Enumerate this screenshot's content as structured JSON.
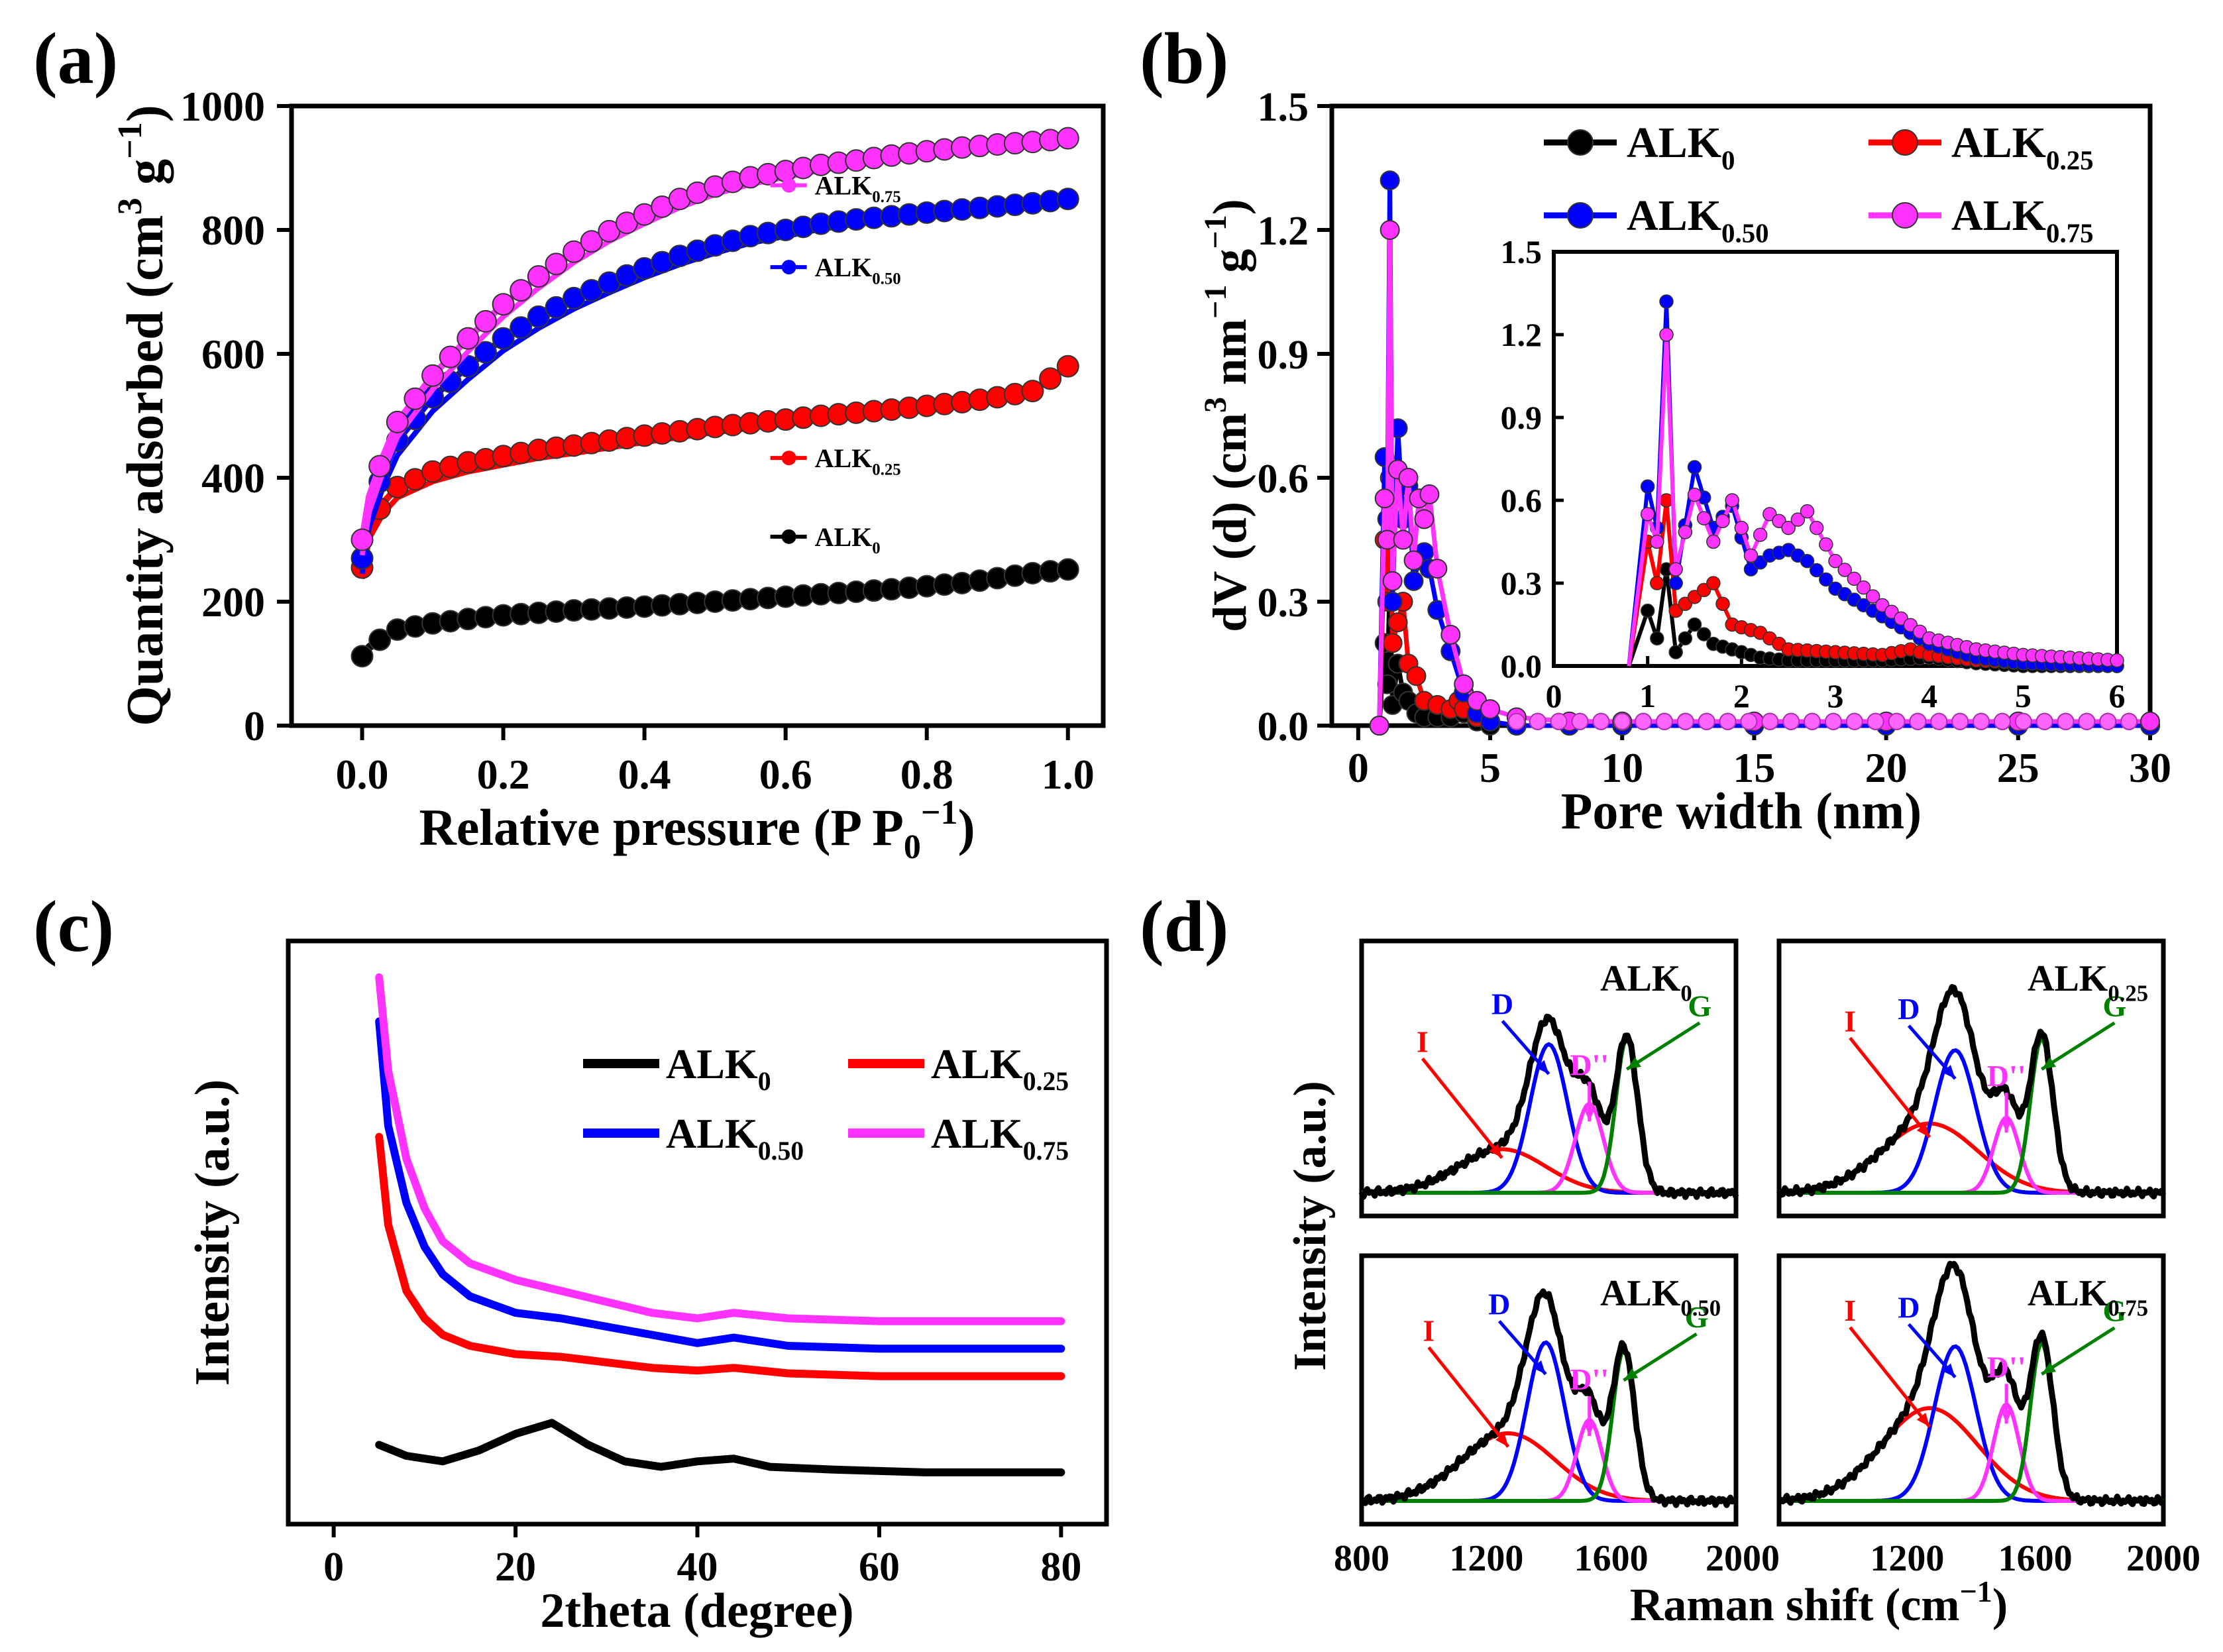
{
  "chart_data": [
    {
      "panel": "(a)",
      "type": "line",
      "xlabel": "Relative pressure (P P0⁻¹)",
      "xlabel_main": "Relative pressure (P P",
      "xlabel_sub": "0",
      "xlabel_sup": "−1",
      "xlabel_close": ")",
      "ylabel": "Quantity adsorbed (cm³ g⁻¹)",
      "ylabel_main": "Quantity adsorbed (cm",
      "ylabel_sup1": "3",
      "ylabel_mid": " g",
      "ylabel_sup2": "−1",
      "ylabel_close": ")",
      "xlim": [
        -0.1,
        1.05
      ],
      "ylim": [
        0,
        1000
      ],
      "xticks": [
        0.0,
        0.2,
        0.4,
        0.6,
        0.8,
        1.0
      ],
      "xtick_labels": [
        "0.0",
        "0.2",
        "0.4",
        "0.6",
        "0.8",
        "1.0"
      ],
      "yticks": [
        0,
        200,
        400,
        600,
        800,
        1000
      ],
      "ytick_labels": [
        "0",
        "200",
        "400",
        "600",
        "800",
        "1000"
      ],
      "legend_position": "inline-right",
      "series": [
        {
          "name": "ALK0",
          "label_main": "ALK",
          "label_sub": "0",
          "color": "#000000",
          "x": [
            0.0,
            0.01,
            0.03,
            0.05,
            0.1,
            0.15,
            0.2,
            0.25,
            0.3,
            0.35,
            0.4,
            0.45,
            0.5,
            0.55,
            0.6,
            0.65,
            0.7,
            0.75,
            0.8,
            0.85,
            0.9,
            0.95,
            1.0
          ],
          "y": [
            112,
            128,
            142,
            155,
            165,
            172,
            178,
            182,
            186,
            189,
            192,
            196,
            200,
            204,
            208,
            212,
            216,
            220,
            225,
            230,
            238,
            246,
            252
          ],
          "label_y": 305
        },
        {
          "name": "ALK0.25",
          "label_main": "ALK",
          "label_sub": "0.25",
          "color": "#ff0000",
          "x": [
            0.0,
            0.01,
            0.03,
            0.05,
            0.1,
            0.15,
            0.2,
            0.25,
            0.3,
            0.35,
            0.4,
            0.45,
            0.5,
            0.55,
            0.6,
            0.65,
            0.7,
            0.75,
            0.8,
            0.85,
            0.9,
            0.95,
            1.0
          ],
          "y": [
            255,
            320,
            360,
            385,
            410,
            425,
            435,
            445,
            452,
            460,
            468,
            475,
            482,
            488,
            494,
            500,
            505,
            510,
            516,
            522,
            530,
            540,
            580
          ],
          "label_y": 432
        },
        {
          "name": "ALK0.50",
          "label_main": "ALK",
          "label_sub": "0.50",
          "color": "#0000ff",
          "x": [
            0.0,
            0.01,
            0.03,
            0.05,
            0.1,
            0.15,
            0.2,
            0.25,
            0.3,
            0.35,
            0.4,
            0.45,
            0.5,
            0.55,
            0.6,
            0.65,
            0.7,
            0.75,
            0.8,
            0.85,
            0.9,
            0.95,
            1.0
          ],
          "y": [
            270,
            345,
            410,
            460,
            530,
            580,
            625,
            660,
            690,
            715,
            738,
            758,
            775,
            790,
            800,
            810,
            817,
            822,
            828,
            833,
            838,
            843,
            850
          ],
          "label_y": 740
        },
        {
          "name": "ALK0.75",
          "label_main": "ALK",
          "label_sub": "0.75",
          "color": "#ff33ff",
          "x": [
            0.0,
            0.01,
            0.03,
            0.05,
            0.1,
            0.15,
            0.2,
            0.25,
            0.3,
            0.35,
            0.4,
            0.45,
            0.5,
            0.55,
            0.6,
            0.65,
            0.7,
            0.75,
            0.8,
            0.85,
            0.9,
            0.95,
            1.0
          ],
          "y": [
            300,
            370,
            435,
            490,
            565,
            625,
            680,
            725,
            765,
            798,
            825,
            850,
            870,
            885,
            895,
            905,
            912,
            920,
            927,
            933,
            938,
            942,
            948
          ],
          "label_y": 872
        }
      ]
    },
    {
      "panel": "(b)",
      "type": "line",
      "xlabel": "Pore width (nm)",
      "ylabel": "dV (d) (cm³ nm⁻¹ g⁻¹)",
      "ylabel_main": "dV (d) (cm",
      "ylabel_sup1": "3",
      "ylabel_mid": " nm",
      "ylabel_sup2": "−1",
      "ylabel_mid2": " g",
      "ylabel_sup3": "−1",
      "ylabel_close": ")",
      "xlim": [
        -1,
        30
      ],
      "ylim": [
        0,
        1.5
      ],
      "xticks": [
        0,
        5,
        10,
        15,
        20,
        25,
        30
      ],
      "xtick_labels": [
        "0",
        "5",
        "10",
        "15",
        "20",
        "25",
        "30"
      ],
      "yticks": [
        0,
        0.3,
        0.6,
        0.9,
        1.2,
        1.5
      ],
      "ytick_labels": [
        "0.0",
        "0.3",
        "0.6",
        "0.9",
        "1.2",
        "1.5"
      ],
      "legend_position": "top",
      "series": [
        {
          "name": "ALK0",
          "label_main": "ALK",
          "label_sub": "0",
          "color": "#000000",
          "x": [
            0.8,
            1.0,
            1.1,
            1.2,
            1.3,
            1.5,
            1.7,
            1.9,
            2.2,
            2.5,
            3,
            3.5,
            4,
            4.5,
            5,
            6,
            8,
            10,
            15,
            20,
            25,
            30
          ],
          "y": [
            0.0,
            0.2,
            0.1,
            0.35,
            0.05,
            0.15,
            0.08,
            0.06,
            0.03,
            0.02,
            0.02,
            0.02,
            0.03,
            0.01,
            0.0,
            0.0,
            0.0,
            0.0,
            0.0,
            0.0,
            0.0,
            0.0
          ]
        },
        {
          "name": "ALK0.25",
          "label_main": "ALK",
          "label_sub": "0.25",
          "color": "#ff0000",
          "x": [
            0.8,
            1.0,
            1.1,
            1.2,
            1.3,
            1.5,
            1.7,
            1.9,
            2.2,
            2.5,
            3,
            3.5,
            3.8,
            4,
            4.5,
            5,
            6,
            8,
            10,
            15,
            20,
            25,
            30
          ],
          "y": [
            0.0,
            0.45,
            0.3,
            0.6,
            0.2,
            0.25,
            0.3,
            0.15,
            0.12,
            0.06,
            0.05,
            0.04,
            0.06,
            0.04,
            0.02,
            0.01,
            0.0,
            0.0,
            0.0,
            0.0,
            0.0,
            0.0,
            0.0
          ]
        },
        {
          "name": "ALK0.50",
          "label_main": "ALK",
          "label_sub": "0.50",
          "color": "#0000ff",
          "x": [
            0.8,
            1.0,
            1.1,
            1.2,
            1.3,
            1.5,
            1.7,
            1.9,
            2.1,
            2.3,
            2.5,
            2.7,
            3,
            3.5,
            4,
            4.5,
            5,
            6,
            8,
            10,
            15,
            20,
            25,
            30
          ],
          "y": [
            0.0,
            0.65,
            0.5,
            1.32,
            0.3,
            0.72,
            0.5,
            0.58,
            0.35,
            0.4,
            0.42,
            0.38,
            0.28,
            0.18,
            0.08,
            0.03,
            0.01,
            0.0,
            0.0,
            0.0,
            0.0,
            0.0,
            0.0,
            0.0
          ]
        },
        {
          "name": "ALK0.75",
          "label_main": "ALK",
          "label_sub": "0.75",
          "color": "#ff33ff",
          "x": [
            0.8,
            1.0,
            1.1,
            1.2,
            1.3,
            1.5,
            1.7,
            1.9,
            2.1,
            2.3,
            2.5,
            2.7,
            3,
            3.5,
            4,
            4.5,
            5,
            6,
            8,
            10,
            15,
            20,
            25,
            30
          ],
          "y": [
            0.0,
            0.55,
            0.45,
            1.2,
            0.35,
            0.62,
            0.45,
            0.6,
            0.4,
            0.55,
            0.5,
            0.56,
            0.38,
            0.22,
            0.1,
            0.06,
            0.04,
            0.02,
            0.01,
            0.01,
            0.01,
            0.01,
            0.01,
            0.01
          ]
        }
      ],
      "inset": {
        "xlim": [
          0,
          6
        ],
        "ylim": [
          0,
          1.5
        ],
        "xticks": [
          0,
          1,
          2,
          3,
          4,
          5,
          6
        ],
        "xtick_labels": [
          "0",
          "1",
          "2",
          "3",
          "4",
          "5",
          "6"
        ],
        "yticks": [
          0,
          0.3,
          0.6,
          0.9,
          1.2,
          1.5
        ],
        "ytick_labels": [
          "0.0",
          "0.3",
          "0.6",
          "0.9",
          "1.2",
          "1.5"
        ]
      }
    },
    {
      "panel": "(c)",
      "type": "line",
      "xlabel": "2theta (degree)",
      "ylabel": "Intensity (a.u.)",
      "xlim": [
        -5,
        85
      ],
      "ylim": [
        0,
        100
      ],
      "xticks": [
        0,
        20,
        40,
        60,
        80
      ],
      "xtick_labels": [
        "0",
        "20",
        "40",
        "60",
        "80"
      ],
      "legend_position": "top-right",
      "series": [
        {
          "name": "ALK0",
          "label_main": "ALK",
          "label_sub": "0",
          "color": "#000000",
          "x": [
            5,
            8,
            12,
            16,
            20,
            24,
            28,
            32,
            36,
            40,
            44,
            48,
            55,
            65,
            80
          ],
          "y": [
            12,
            10,
            9,
            11,
            14,
            16,
            12,
            9,
            8,
            9,
            9.5,
            8,
            7.5,
            7,
            7
          ]
        },
        {
          "name": "ALK0.25",
          "label_main": "ALK",
          "label_sub": "0.25",
          "color": "#ff0000",
          "x": [
            5,
            6,
            8,
            10,
            12,
            15,
            20,
            25,
            30,
            35,
            40,
            44,
            50,
            60,
            70,
            80
          ],
          "y": [
            68,
            52,
            40,
            35,
            32,
            30,
            28.5,
            28,
            27,
            26,
            25.5,
            26,
            25,
            24.5,
            24.5,
            24.5
          ]
        },
        {
          "name": "ALK0.50",
          "label_main": "ALK",
          "label_sub": "0.50",
          "color": "#0000ff",
          "x": [
            5,
            6,
            8,
            10,
            12,
            15,
            20,
            25,
            30,
            35,
            40,
            44,
            50,
            60,
            70,
            80
          ],
          "y": [
            89,
            70,
            56,
            48,
            43,
            39,
            36,
            35,
            33.5,
            32,
            30.5,
            31.5,
            30,
            29.5,
            29.5,
            29.5
          ]
        },
        {
          "name": "ALK0.75",
          "label_main": "ALK",
          "label_sub": "0.75",
          "color": "#ff33ff",
          "x": [
            5,
            6,
            8,
            10,
            12,
            15,
            20,
            25,
            30,
            35,
            40,
            44,
            50,
            60,
            70,
            80
          ],
          "y": [
            97,
            80,
            64,
            55,
            49,
            45,
            42,
            40,
            38,
            36,
            35,
            36,
            35,
            34.5,
            34.5,
            34.5
          ]
        }
      ]
    },
    {
      "panel": "(d)",
      "type": "line",
      "xlabel": "Raman shift (cm⁻¹)",
      "xlabel_main": "Raman shift (cm",
      "xlabel_sup": "−1",
      "xlabel_close": ")",
      "ylabel": "Intensity (a.u.)",
      "xlim": [
        800,
        2000
      ],
      "xticks": [
        800,
        1200,
        1600,
        2000
      ],
      "xtick_labels": [
        "800",
        "1200",
        "1600",
        "2000"
      ],
      "peak_labels": [
        "D",
        "D''",
        "I",
        "G"
      ],
      "bands": [
        {
          "name": "I",
          "color": "#ff0000"
        },
        {
          "name": "D",
          "color": "#0000ff"
        },
        {
          "name": "D''",
          "color": "#ff33ff"
        },
        {
          "name": "G",
          "color": "#008000"
        }
      ],
      "subplots": [
        {
          "name": "ALK0",
          "label_main": "ALK",
          "label_sub": "0",
          "peaks": {
            "I": [
              1250,
              0.22,
              140
            ],
            "D": [
              1400,
              0.75,
              60
            ],
            "D''": [
              1530,
              0.45,
              45
            ],
            "G": [
              1650,
              0.78,
              35
            ]
          }
        },
        {
          "name": "ALK0.25",
          "label_main": "ALK",
          "label_sub": "0.25",
          "peaks": {
            "I": [
              1270,
              0.35,
              150
            ],
            "D": [
              1350,
              0.72,
              65
            ],
            "D''": [
              1510,
              0.38,
              40
            ],
            "G": [
              1620,
              0.78,
              35
            ]
          }
        },
        {
          "name": "ALK0.50",
          "label_main": "ALK",
          "label_sub": "0.50",
          "peaks": {
            "I": [
              1270,
              0.35,
              150
            ],
            "D": [
              1390,
              0.82,
              60
            ],
            "D''": [
              1530,
              0.42,
              40
            ],
            "G": [
              1640,
              0.78,
              35
            ]
          }
        },
        {
          "name": "ALK0.75",
          "label_main": "ALK",
          "label_sub": "0.75",
          "peaks": {
            "I": [
              1270,
              0.48,
              150
            ],
            "D": [
              1350,
              0.8,
              65
            ],
            "D''": [
              1510,
              0.5,
              40
            ],
            "G": [
              1620,
              0.82,
              35
            ]
          }
        }
      ]
    }
  ],
  "panel_labels": [
    "(a)",
    "(b)",
    "(c)",
    "(d)"
  ]
}
